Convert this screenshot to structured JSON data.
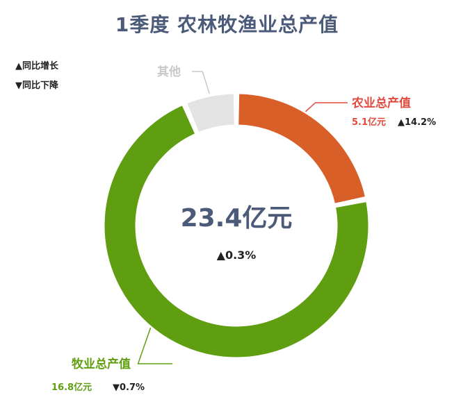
{
  "title": "1季度 农林牧渔业总产值",
  "legend": {
    "up": "▲同比增长",
    "down": "▼同比下降"
  },
  "center": {
    "total": "23.4亿元",
    "change": "▲0.3%"
  },
  "colors": {
    "title": "#4a5a78",
    "agriculture": "#d95f29",
    "livestock": "#5f9e10",
    "other": "#e3e3e3",
    "agriculture_label": "#e24a3f",
    "livestock_label": "#5f9e10",
    "other_label": "#c8c8c8",
    "center_total": "#4a5a78"
  },
  "chart_data": {
    "type": "pie",
    "total": 23.4,
    "unit": "亿元",
    "slices": [
      {
        "key": "agriculture",
        "label": "农业总产值",
        "value": 5.1,
        "value_text": "5.1亿元",
        "change": "▲14.2%",
        "color": "#d95f29"
      },
      {
        "key": "livestock",
        "label": "牧业总产值",
        "value": 16.8,
        "value_text": "16.8亿元",
        "change": "▼0.7%",
        "color": "#5f9e10"
      },
      {
        "key": "other",
        "label": "其他",
        "value": 1.5,
        "value_text": "",
        "change": "",
        "color": "#e3e3e3"
      }
    ]
  }
}
